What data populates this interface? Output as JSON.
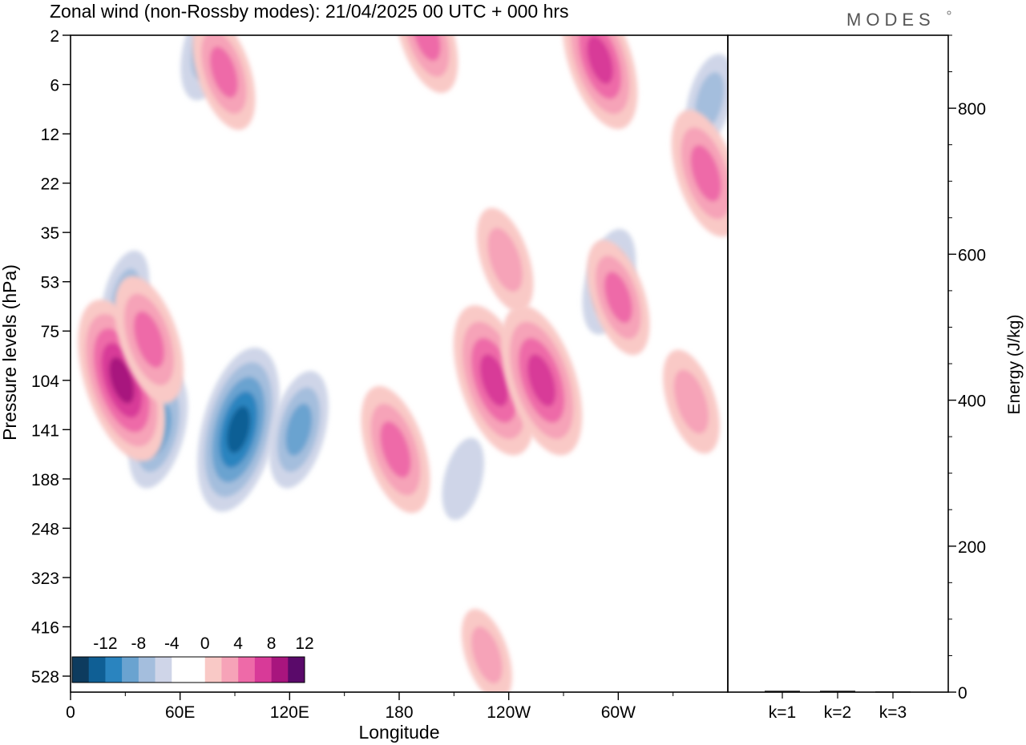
{
  "title": "Zonal wind (non-Rossby modes):  21/04/2025  00 UTC  + 000 hrs",
  "logo": "MODES",
  "chart_data": [
    {
      "type": "heatmap",
      "xlabel": "Longitude",
      "ylabel": "Pressure levels (hPa)",
      "x_ticks": [
        "0",
        "60E",
        "120E",
        "180",
        "120W",
        "60W"
      ],
      "y_ticks": [
        "2",
        "6",
        "12",
        "22",
        "35",
        "53",
        "75",
        "104",
        "141",
        "188",
        "248",
        "323",
        "416",
        "528"
      ],
      "colorbar": {
        "labels": [
          "-12",
          "-8",
          "-4",
          "0",
          "4",
          "8",
          "12"
        ],
        "colors": [
          "#0d3b5e",
          "#0f5f95",
          "#2a84bf",
          "#6aa3d0",
          "#a4bedd",
          "#cfd5e8",
          "#ffffff",
          "#ffffff",
          "#f9c9c6",
          "#f6a3b8",
          "#ee6aa8",
          "#d83a98",
          "#a8157e",
          "#5a0a6a"
        ]
      },
      "features": [
        {
          "sign": "negative",
          "lon": 92,
          "level": 141,
          "peak": -10
        },
        {
          "sign": "negative",
          "lon": 125,
          "level": 141,
          "peak": -6
        },
        {
          "sign": "negative",
          "lon": 48,
          "level": 141,
          "peak": -6
        },
        {
          "sign": "negative",
          "lon": 30,
          "level": 60,
          "peak": -4
        },
        {
          "sign": "negative",
          "lon": 75,
          "level": 3,
          "peak": -5
        },
        {
          "sign": "negative",
          "lon": 215,
          "level": 188,
          "peak": -3
        },
        {
          "sign": "negative",
          "lon": 295,
          "level": 53,
          "peak": -5
        },
        {
          "sign": "negative",
          "lon": 350,
          "level": 8,
          "peak": -4
        },
        {
          "sign": "positive",
          "lon": 28,
          "level": 104,
          "peak": 10
        },
        {
          "sign": "positive",
          "lon": 43,
          "level": 80,
          "peak": 7
        },
        {
          "sign": "positive",
          "lon": 178,
          "level": 160,
          "peak": 7
        },
        {
          "sign": "positive",
          "lon": 232,
          "level": 104,
          "peak": 9
        },
        {
          "sign": "positive",
          "lon": 258,
          "level": 104,
          "peak": 9
        },
        {
          "sign": "positive",
          "lon": 290,
          "level": 4,
          "peak": 8
        },
        {
          "sign": "positive",
          "lon": 300,
          "level": 60,
          "peak": 6
        },
        {
          "sign": "positive",
          "lon": 348,
          "level": 20,
          "peak": 7
        },
        {
          "sign": "positive",
          "lon": 195,
          "level": 2,
          "peak": 6
        },
        {
          "sign": "positive",
          "lon": 84,
          "level": 5,
          "peak": 6
        },
        {
          "sign": "positive",
          "lon": 238,
          "level": 45,
          "peak": 5
        },
        {
          "sign": "positive",
          "lon": 228,
          "level": 480,
          "peak": 4
        },
        {
          "sign": "positive",
          "lon": 340,
          "level": 120,
          "peak": 5
        }
      ]
    },
    {
      "type": "bar",
      "ylabel": "Energy (J/kg)",
      "categories": [
        "k=1",
        "k=2",
        "k=3"
      ],
      "values": [
        2,
        2,
        1
      ],
      "ylim": [
        0,
        900
      ],
      "y_ticks": [
        "0",
        "200",
        "400",
        "600",
        "800"
      ]
    }
  ]
}
